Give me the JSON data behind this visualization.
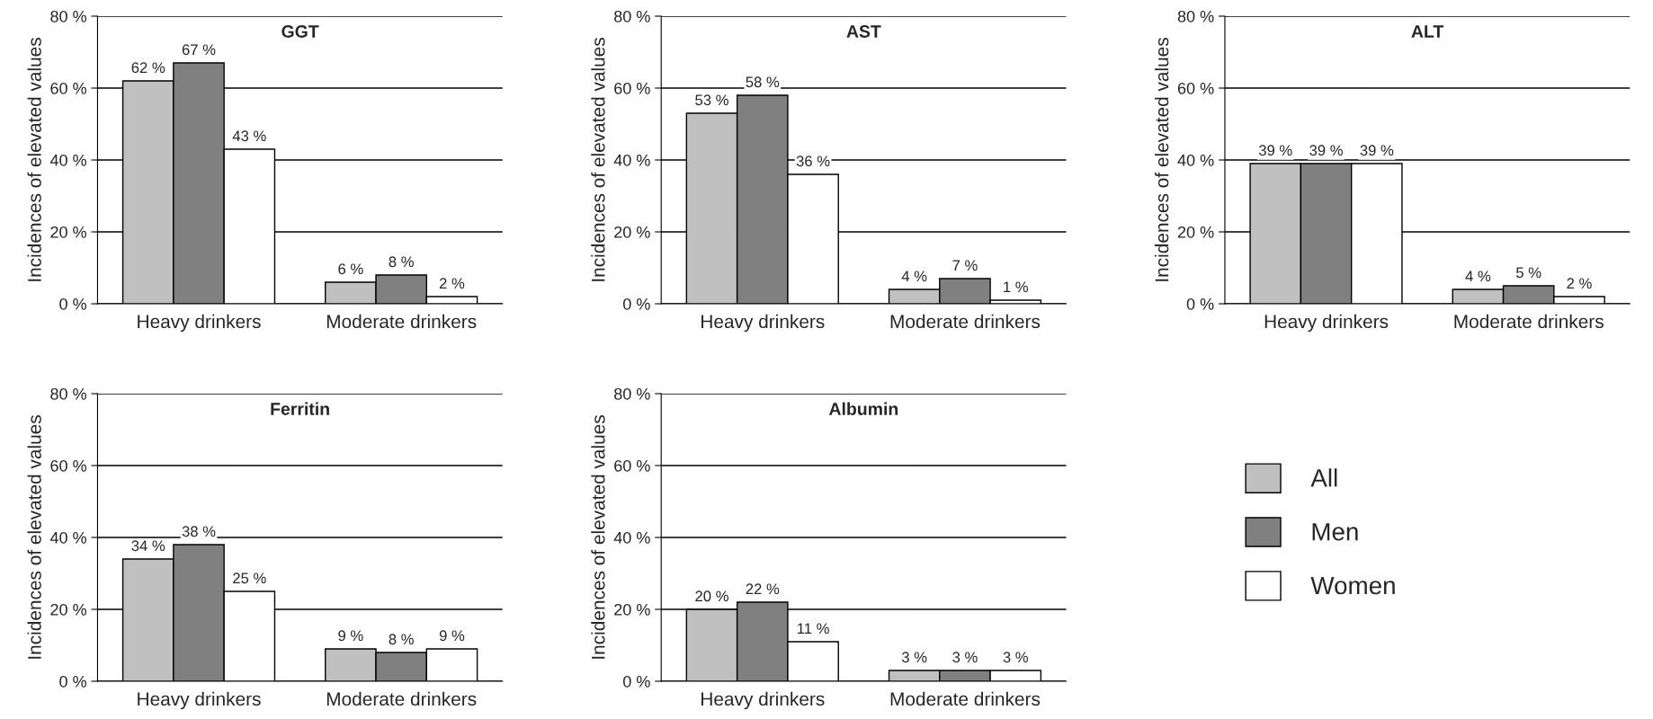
{
  "chart_data": [
    {
      "type": "bar",
      "title": "GGT",
      "ylabel": "Incidences of elevated values",
      "categories": [
        "Heavy drinkers",
        "Moderate drinkers"
      ],
      "ylim": [
        0,
        80
      ],
      "yticks": [
        {
          "value": 0,
          "label": "0 %"
        },
        {
          "value": 20,
          "label": "20 %"
        },
        {
          "value": 40,
          "label": "40 %"
        },
        {
          "value": 60,
          "label": "60 %"
        },
        {
          "value": 80,
          "label": "80 %"
        }
      ],
      "grid": "y",
      "legend": "bottom right",
      "series": [
        {
          "name": "All",
          "color": "#c0c0c0",
          "values": [
            62,
            6
          ],
          "value_labels": [
            "62 %",
            "6 %"
          ]
        },
        {
          "name": "Men",
          "color": "#808080",
          "values": [
            67,
            8
          ],
          "value_labels": [
            "67 %",
            "8 %"
          ]
        },
        {
          "name": "Women",
          "color": "#ffffff",
          "values": [
            43,
            2
          ],
          "value_labels": [
            "43 %",
            "2 %"
          ]
        }
      ]
    },
    {
      "type": "bar",
      "title": "AST",
      "ylabel": "Incidences of elevated values",
      "categories": [
        "Heavy drinkers",
        "Moderate drinkers"
      ],
      "ylim": [
        0,
        80
      ],
      "yticks": [
        {
          "value": 0,
          "label": "0 %"
        },
        {
          "value": 20,
          "label": "20 %"
        },
        {
          "value": 40,
          "label": "40 %"
        },
        {
          "value": 60,
          "label": "60 %"
        },
        {
          "value": 80,
          "label": "80 %"
        }
      ],
      "grid": "y",
      "legend": false,
      "series": [
        {
          "color": "#c0c0c0",
          "values": [
            53,
            4
          ],
          "value_labels": [
            "53 %",
            "4 %"
          ]
        },
        {
          "color": "#808080",
          "values": [
            58,
            7
          ],
          "value_labels": [
            "58 %",
            "7 %"
          ]
        },
        {
          "color": "#ffffff",
          "values": [
            36,
            1
          ],
          "value_labels": [
            "36 %",
            "1 %"
          ]
        }
      ]
    },
    {
      "type": "bar",
      "title": "ALT",
      "ylabel": "Incidences of elevated values",
      "categories": [
        "Heavy drinkers",
        "Moderate drinkers"
      ],
      "ylim": [
        0,
        80
      ],
      "yticks": [
        {
          "value": 0,
          "label": "0 %"
        },
        {
          "value": 20,
          "label": "20 %"
        },
        {
          "value": 40,
          "label": "40 %"
        },
        {
          "value": 60,
          "label": "60 %"
        },
        {
          "value": 80,
          "label": "80 %"
        }
      ],
      "grid": "y",
      "legend": false,
      "series": [
        {
          "color": "#c0c0c0",
          "values": [
            39,
            4
          ],
          "value_labels": [
            "39 %",
            "4 %"
          ]
        },
        {
          "color": "#808080",
          "values": [
            39,
            5
          ],
          "value_labels": [
            "39 %",
            "5 %"
          ]
        },
        {
          "color": "#ffffff",
          "values": [
            39,
            2
          ],
          "value_labels": [
            "39 %",
            "2 %"
          ]
        }
      ]
    },
    {
      "type": "bar",
      "title": "Ferritin",
      "ylabel": "Incidences of elevated values",
      "categories": [
        "Heavy drinkers",
        "Moderate drinkers"
      ],
      "ylim": [
        0,
        80
      ],
      "yticks": [
        {
          "value": 0,
          "label": "0 %"
        },
        {
          "value": 20,
          "label": "20 %"
        },
        {
          "value": 40,
          "label": "40 %"
        },
        {
          "value": 60,
          "label": "60 %"
        },
        {
          "value": 80,
          "label": "80 %"
        }
      ],
      "grid": "y",
      "legend": false,
      "series": [
        {
          "color": "#c0c0c0",
          "values": [
            34,
            9
          ],
          "value_labels": [
            "34 %",
            "9 %"
          ]
        },
        {
          "color": "#808080",
          "values": [
            38,
            8
          ],
          "value_labels": [
            "38 %",
            "8 %"
          ]
        },
        {
          "color": "#ffffff",
          "values": [
            25,
            9
          ],
          "value_labels": [
            "25 %",
            "9 %"
          ]
        }
      ]
    },
    {
      "type": "bar",
      "title": "Albumin",
      "ylabel": "Incidences of elevated values",
      "categories": [
        "Heavy drinkers",
        "Moderate drinkers"
      ],
      "ylim": [
        0,
        80
      ],
      "yticks": [
        {
          "value": 0,
          "label": "0 %"
        },
        {
          "value": 20,
          "label": "20 %"
        },
        {
          "value": 40,
          "label": "40 %"
        },
        {
          "value": 60,
          "label": "60 %"
        },
        {
          "value": 80,
          "label": "80 %"
        }
      ],
      "grid": "y",
      "series": [
        {
          "color": "#c0c0c0",
          "values": [
            20,
            3
          ],
          "value_labels": [
            "20 %",
            "3 %"
          ]
        },
        {
          "color": "#808080",
          "values": [
            22,
            3
          ],
          "value_labels": [
            "22 %",
            "3 %"
          ]
        },
        {
          "color": "#ffffff",
          "values": [
            11,
            3
          ],
          "value_labels": [
            "11 %",
            "3 %"
          ]
        }
      ]
    }
  ]
}
